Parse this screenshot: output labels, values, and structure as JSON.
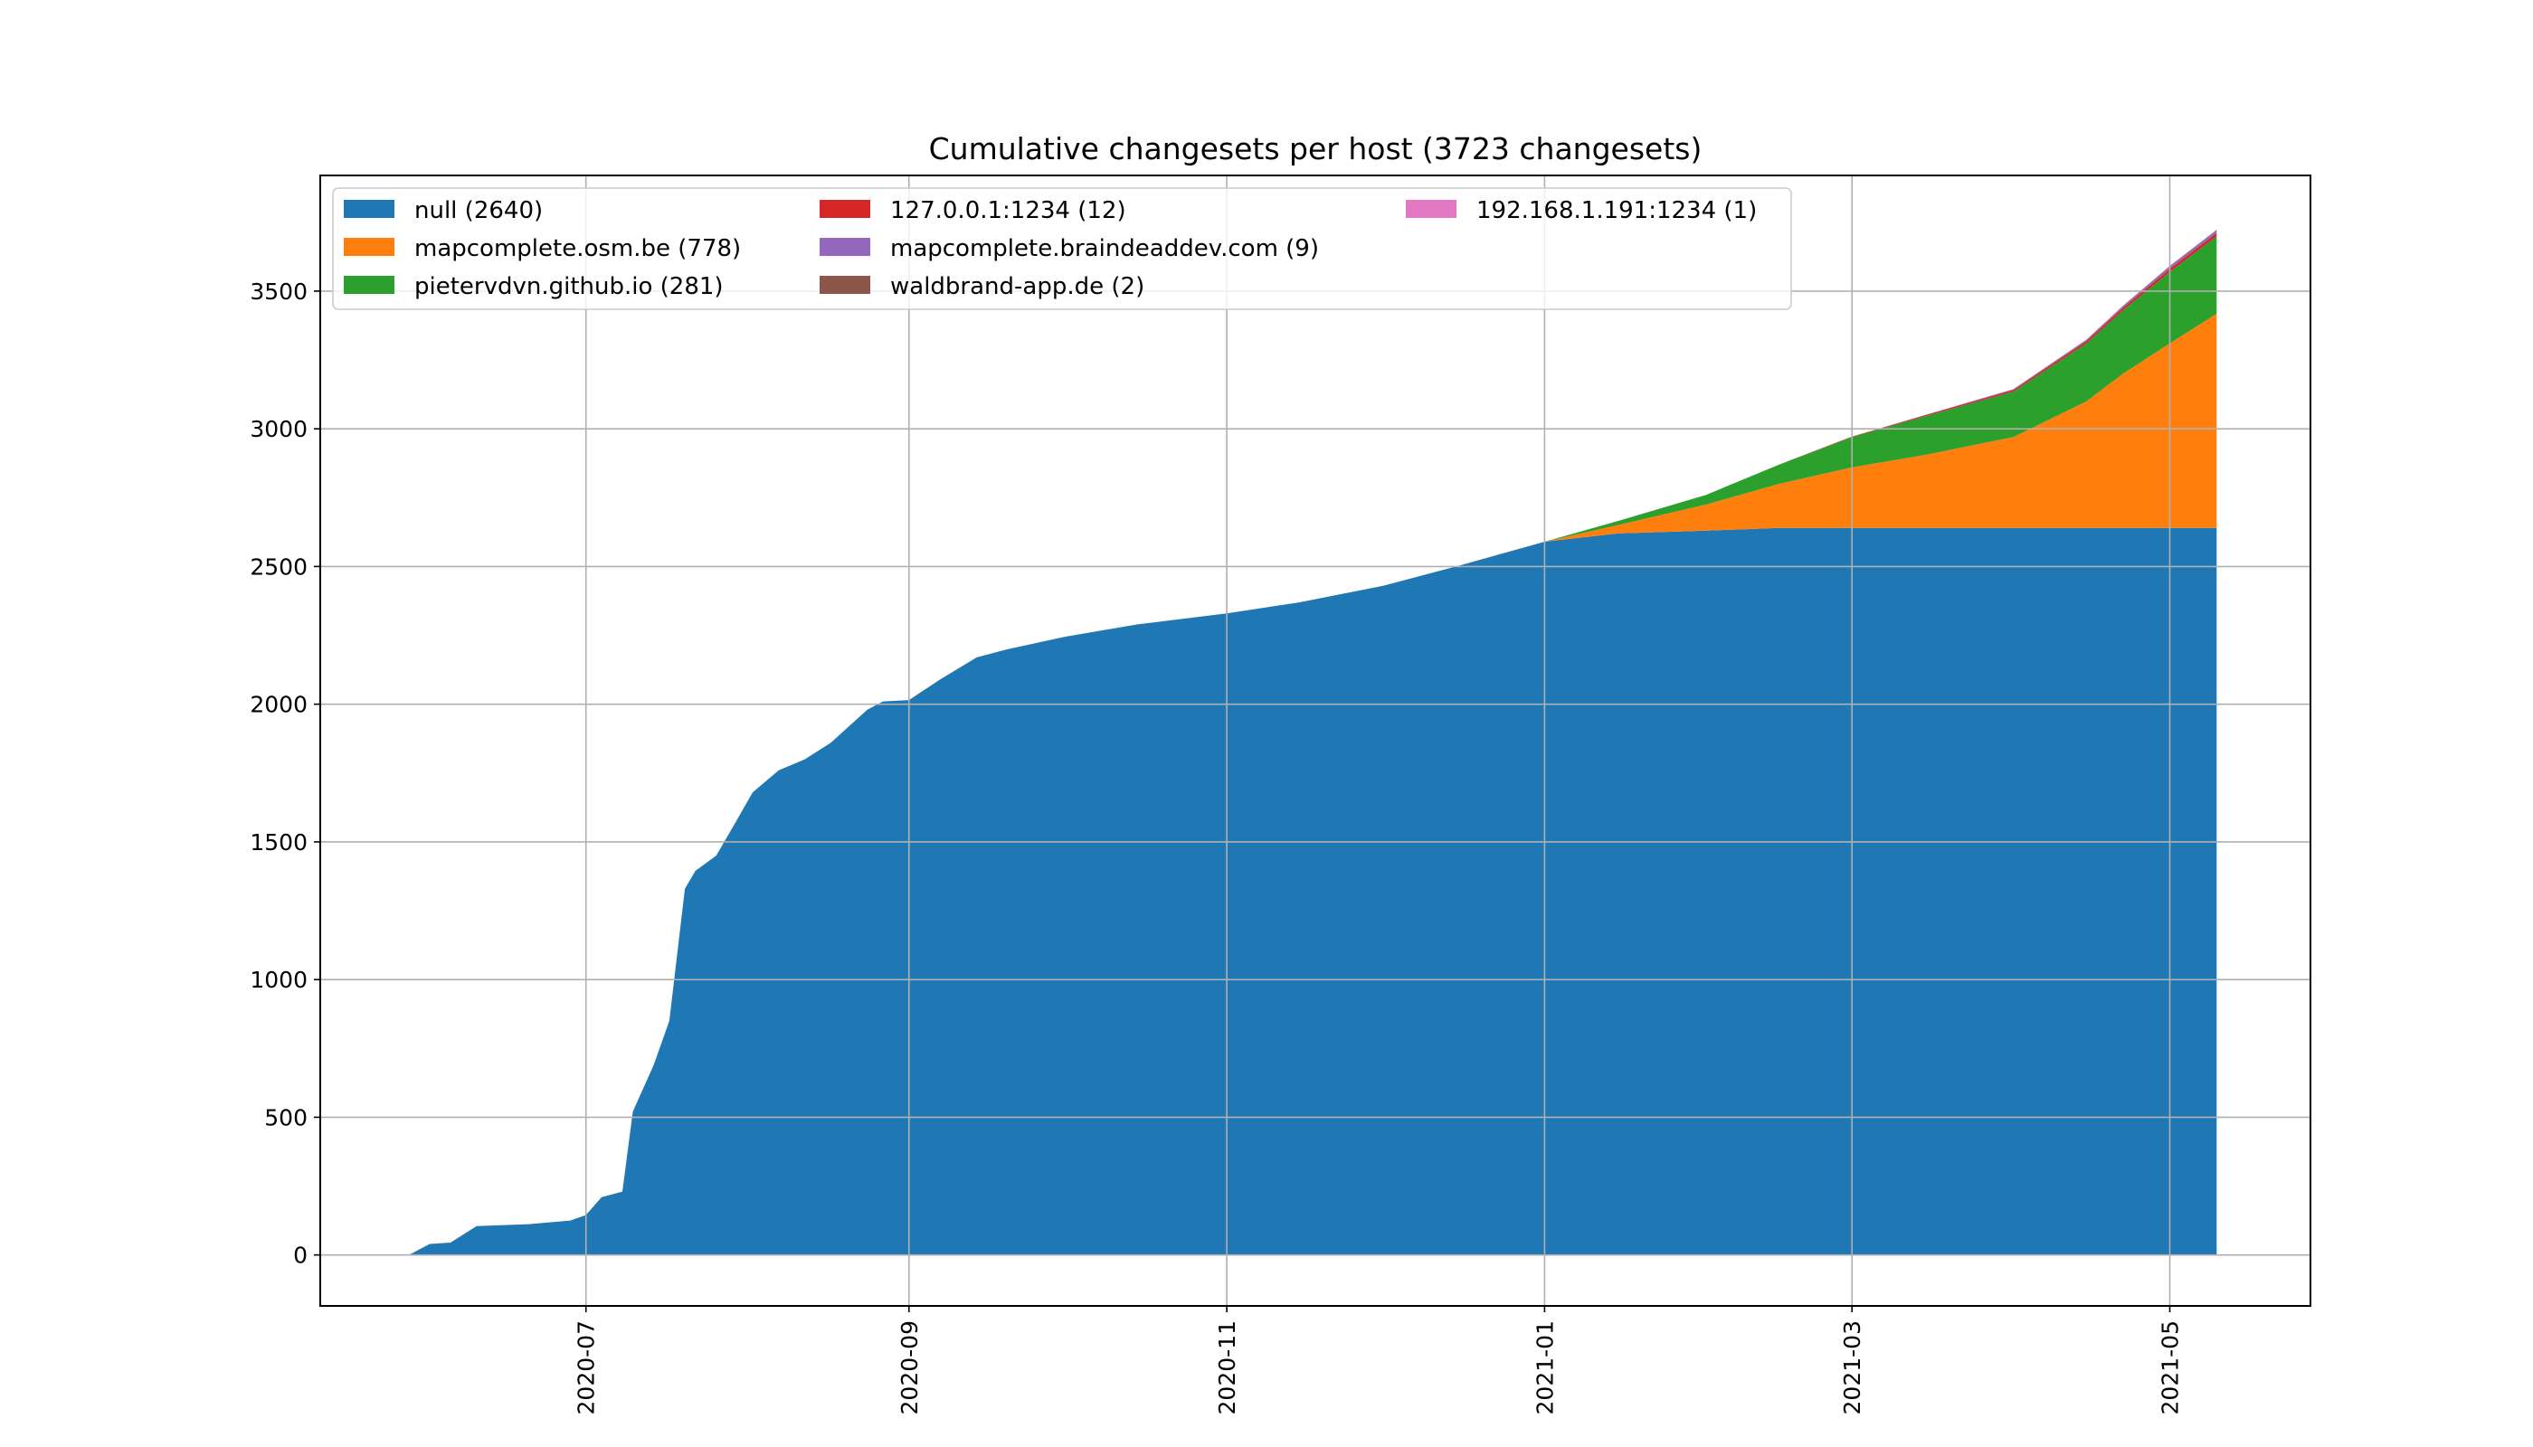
{
  "chart_data": {
    "type": "area",
    "stacked": true,
    "title": "Cumulative changesets per host (3723 changesets)",
    "xlabel": "",
    "ylabel": "",
    "x_axis_type": "date",
    "xlim": [
      "2020-05-11",
      "2021-05-28"
    ],
    "ylim": [
      -185,
      3920
    ],
    "x_ticks": [
      "2020-07",
      "2020-09",
      "2020-11",
      "2021-01",
      "2021-03",
      "2021-05"
    ],
    "x_tick_dates": [
      "2020-07-01",
      "2020-09-01",
      "2020-11-01",
      "2021-01-01",
      "2021-03-01",
      "2021-05-01"
    ],
    "y_ticks": [
      0,
      500,
      1000,
      1500,
      2000,
      2500,
      3000,
      3500
    ],
    "grid": true,
    "legend": {
      "placement": "top-left",
      "columns": 3
    },
    "x": [
      "2020-05-28",
      "2020-06-01",
      "2020-06-05",
      "2020-06-10",
      "2020-06-20",
      "2020-06-28",
      "2020-07-01",
      "2020-07-04",
      "2020-07-08",
      "2020-07-10",
      "2020-07-14",
      "2020-07-17",
      "2020-07-20",
      "2020-07-22",
      "2020-07-26",
      "2020-07-30",
      "2020-08-02",
      "2020-08-07",
      "2020-08-12",
      "2020-08-17",
      "2020-08-24",
      "2020-08-27",
      "2020-09-01",
      "2020-09-07",
      "2020-09-14",
      "2020-09-20",
      "2020-10-01",
      "2020-10-15",
      "2020-11-01",
      "2020-11-15",
      "2020-12-01",
      "2020-12-15",
      "2021-01-01",
      "2021-01-15",
      "2021-02-01",
      "2021-02-15",
      "2021-03-01",
      "2021-03-15",
      "2021-04-01",
      "2021-04-15",
      "2021-04-22",
      "2021-05-01",
      "2021-05-10"
    ],
    "series": [
      {
        "name": "null (2640)",
        "color": "#1f77b4",
        "values": [
          0,
          40,
          45,
          105,
          112,
          125,
          145,
          210,
          230,
          520,
          690,
          850,
          1330,
          1395,
          1450,
          1580,
          1680,
          1760,
          1800,
          1860,
          1980,
          2010,
          2015,
          2090,
          2170,
          2200,
          2245,
          2290,
          2330,
          2370,
          2430,
          2500,
          2590,
          2620,
          2630,
          2640,
          2640,
          2640,
          2640,
          2640,
          2640,
          2640,
          2640
        ]
      },
      {
        "name": "mapcomplete.osm.be (778)",
        "color": "#ff7f0e",
        "values": [
          0,
          0,
          0,
          0,
          0,
          0,
          0,
          0,
          0,
          0,
          0,
          0,
          0,
          0,
          0,
          0,
          0,
          0,
          0,
          0,
          0,
          0,
          0,
          0,
          0,
          0,
          0,
          0,
          0,
          0,
          0,
          0,
          0,
          30,
          95,
          160,
          220,
          265,
          330,
          460,
          560,
          670,
          778
        ]
      },
      {
        "name": "pietervdvn.github.io (281)",
        "color": "#2ca02c",
        "values": [
          0,
          0,
          0,
          0,
          0,
          0,
          0,
          0,
          0,
          0,
          0,
          0,
          0,
          0,
          0,
          0,
          0,
          0,
          0,
          0,
          0,
          0,
          0,
          0,
          0,
          0,
          0,
          0,
          0,
          0,
          0,
          0,
          0,
          15,
          35,
          70,
          110,
          140,
          165,
          210,
          230,
          260,
          281
        ]
      },
      {
        "name": "127.0.0.1:1234 (12)",
        "color": "#d62728",
        "values": [
          0,
          0,
          0,
          0,
          0,
          0,
          0,
          0,
          0,
          0,
          0,
          0,
          0,
          0,
          0,
          0,
          0,
          0,
          0,
          0,
          0,
          0,
          0,
          0,
          0,
          0,
          0,
          0,
          0,
          0,
          0,
          0,
          0,
          0,
          0,
          0,
          2,
          4,
          6,
          8,
          9,
          11,
          12
        ]
      },
      {
        "name": "mapcomplete.braindeaddev.com (9)",
        "color": "#9467bd",
        "values": [
          0,
          0,
          0,
          0,
          0,
          0,
          0,
          0,
          0,
          0,
          0,
          0,
          0,
          0,
          0,
          0,
          0,
          0,
          0,
          0,
          0,
          0,
          0,
          0,
          0,
          0,
          0,
          0,
          0,
          0,
          0,
          0,
          0,
          0,
          0,
          0,
          0,
          1,
          3,
          5,
          6,
          8,
          9
        ]
      },
      {
        "name": "waldbrand-app.de (2)",
        "color": "#8c564b",
        "values": [
          0,
          0,
          0,
          0,
          0,
          0,
          0,
          0,
          0,
          0,
          0,
          0,
          0,
          0,
          0,
          0,
          0,
          0,
          0,
          0,
          0,
          0,
          0,
          0,
          0,
          0,
          0,
          0,
          0,
          0,
          0,
          0,
          0,
          0,
          0,
          0,
          0,
          0,
          0,
          1,
          1,
          2,
          2
        ]
      },
      {
        "name": "192.168.1.191:1234 (1)",
        "color": "#e377c2",
        "values": [
          0,
          0,
          0,
          0,
          0,
          0,
          0,
          0,
          0,
          0,
          0,
          0,
          0,
          0,
          0,
          0,
          0,
          0,
          0,
          0,
          0,
          0,
          0,
          0,
          0,
          0,
          0,
          0,
          0,
          0,
          0,
          0,
          0,
          0,
          0,
          0,
          0,
          0,
          0,
          0,
          1,
          1,
          1
        ]
      }
    ]
  }
}
